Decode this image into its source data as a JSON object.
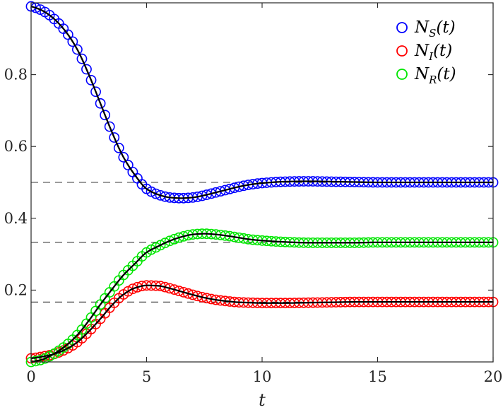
{
  "chart_data": {
    "type": "line",
    "title": "",
    "xlabel": "t",
    "ylabel": "",
    "xlim": [
      0,
      20
    ],
    "ylim": [
      0,
      1
    ],
    "xticks": [
      0,
      5,
      10,
      15,
      20
    ],
    "xtick_labels": [
      "0",
      "5",
      "10",
      "15",
      "20"
    ],
    "yticks": [
      0.2,
      0.4,
      0.6,
      0.8
    ],
    "ytick_labels": [
      "0.2",
      "0.4",
      "0.6",
      "0.8"
    ],
    "grid": false,
    "legend_position": "top-right",
    "reference_lines": [
      0.5,
      0.3333,
      0.1667
    ],
    "t": [
      0,
      0.25,
      0.5,
      0.75,
      1,
      1.5,
      2,
      2.5,
      3,
      3.5,
      4,
      4.5,
      5,
      5.5,
      6,
      6.5,
      7,
      7.5,
      8,
      8.5,
      9,
      9.5,
      10,
      11,
      12,
      13,
      14,
      15,
      16,
      17,
      18,
      19,
      20
    ],
    "series": [
      {
        "name": "N_S(t)",
        "legend_main": "N",
        "legend_sub": "S",
        "legend_suffix": "(t)",
        "color": "#0000ff",
        "values": [
          0.99,
          0.985,
          0.978,
          0.968,
          0.955,
          0.92,
          0.87,
          0.8,
          0.72,
          0.64,
          0.57,
          0.52,
          0.482,
          0.466,
          0.458,
          0.456,
          0.458,
          0.464,
          0.472,
          0.48,
          0.488,
          0.494,
          0.498,
          0.502,
          0.503,
          0.502,
          0.501,
          0.5,
          0.5,
          0.5,
          0.5,
          0.5,
          0.5
        ]
      },
      {
        "name": "N_I(t)",
        "legend_main": "N",
        "legend_sub": "I",
        "legend_suffix": "(t)",
        "color": "#ff0000",
        "values": [
          0.01,
          0.012,
          0.015,
          0.018,
          0.022,
          0.035,
          0.055,
          0.085,
          0.12,
          0.158,
          0.188,
          0.206,
          0.213,
          0.212,
          0.205,
          0.196,
          0.187,
          0.179,
          0.173,
          0.169,
          0.166,
          0.165,
          0.164,
          0.164,
          0.165,
          0.166,
          0.167,
          0.167,
          0.167,
          0.167,
          0.167,
          0.167,
          0.167
        ]
      },
      {
        "name": "N_R(t)",
        "legend_main": "N",
        "legend_sub": "R",
        "legend_suffix": "(t)",
        "color": "#00e600",
        "values": [
          0.0,
          0.003,
          0.007,
          0.014,
          0.023,
          0.045,
          0.075,
          0.115,
          0.16,
          0.202,
          0.242,
          0.274,
          0.305,
          0.322,
          0.337,
          0.348,
          0.355,
          0.357,
          0.355,
          0.351,
          0.346,
          0.341,
          0.338,
          0.334,
          0.332,
          0.332,
          0.332,
          0.333,
          0.333,
          0.333,
          0.333,
          0.333,
          0.333
        ]
      }
    ]
  }
}
